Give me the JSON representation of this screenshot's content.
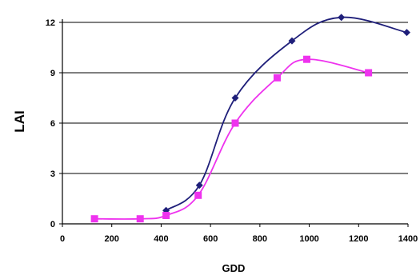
{
  "chart_data": {
    "type": "line",
    "xlabel": "GDD",
    "ylabel": "LAI",
    "xlim": [
      0,
      1400
    ],
    "ylim": [
      0,
      12
    ],
    "xticks": [
      0,
      200,
      400,
      600,
      800,
      1000,
      1200,
      1400
    ],
    "yticks": [
      0,
      3,
      6,
      9,
      12
    ],
    "grid": "horizontal",
    "legend": "none",
    "series": [
      {
        "marker": "diamond",
        "color": "#1f1f7a",
        "x": [
          420,
          555,
          700,
          930,
          1130,
          1395
        ],
        "y": [
          0.8,
          2.3,
          7.5,
          10.9,
          12.3,
          11.4
        ]
      },
      {
        "marker": "square",
        "color": "#ee33ee",
        "x": [
          130,
          315,
          420,
          550,
          700,
          870,
          990,
          1240
        ],
        "y": [
          0.3,
          0.3,
          0.5,
          1.7,
          6.0,
          8.7,
          9.8,
          9.0
        ]
      }
    ]
  }
}
